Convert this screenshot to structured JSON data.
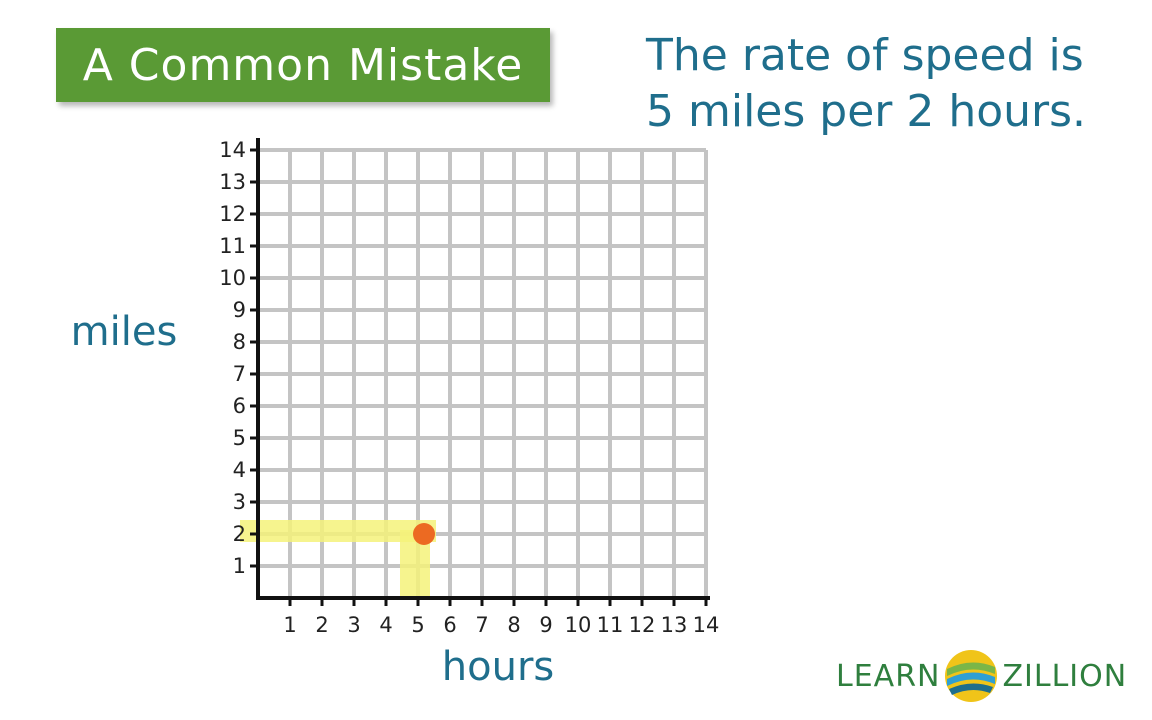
{
  "banner": {
    "title": "A Common Mistake"
  },
  "note": {
    "line1": "The rate of speed is",
    "line2": "5 miles per 2 hours."
  },
  "logo": {
    "part1": "LEARN",
    "part2": "ZILLION"
  },
  "colors": {
    "banner": "#5a9a35",
    "note_text": "#1f6e8c",
    "grid": "#c4c4c4",
    "axis": "#111111",
    "highlight": "#f5f27a",
    "point": "#ec6a22"
  },
  "chart_data": {
    "type": "scatter",
    "xlabel": "hours",
    "ylabel": "miles",
    "xlim": [
      0,
      14
    ],
    "ylim": [
      0,
      14
    ],
    "xticks": [
      "1",
      "2",
      "3",
      "4",
      "5",
      "6",
      "7",
      "8",
      "9",
      "10",
      "11",
      "12",
      "13",
      "14"
    ],
    "yticks": [
      "1",
      "2",
      "3",
      "4",
      "5",
      "6",
      "7",
      "8",
      "9",
      "10",
      "11",
      "12",
      "13",
      "14"
    ],
    "grid": true,
    "points": [
      {
        "x": 5,
        "y": 2
      }
    ],
    "highlight_guides": true
  }
}
